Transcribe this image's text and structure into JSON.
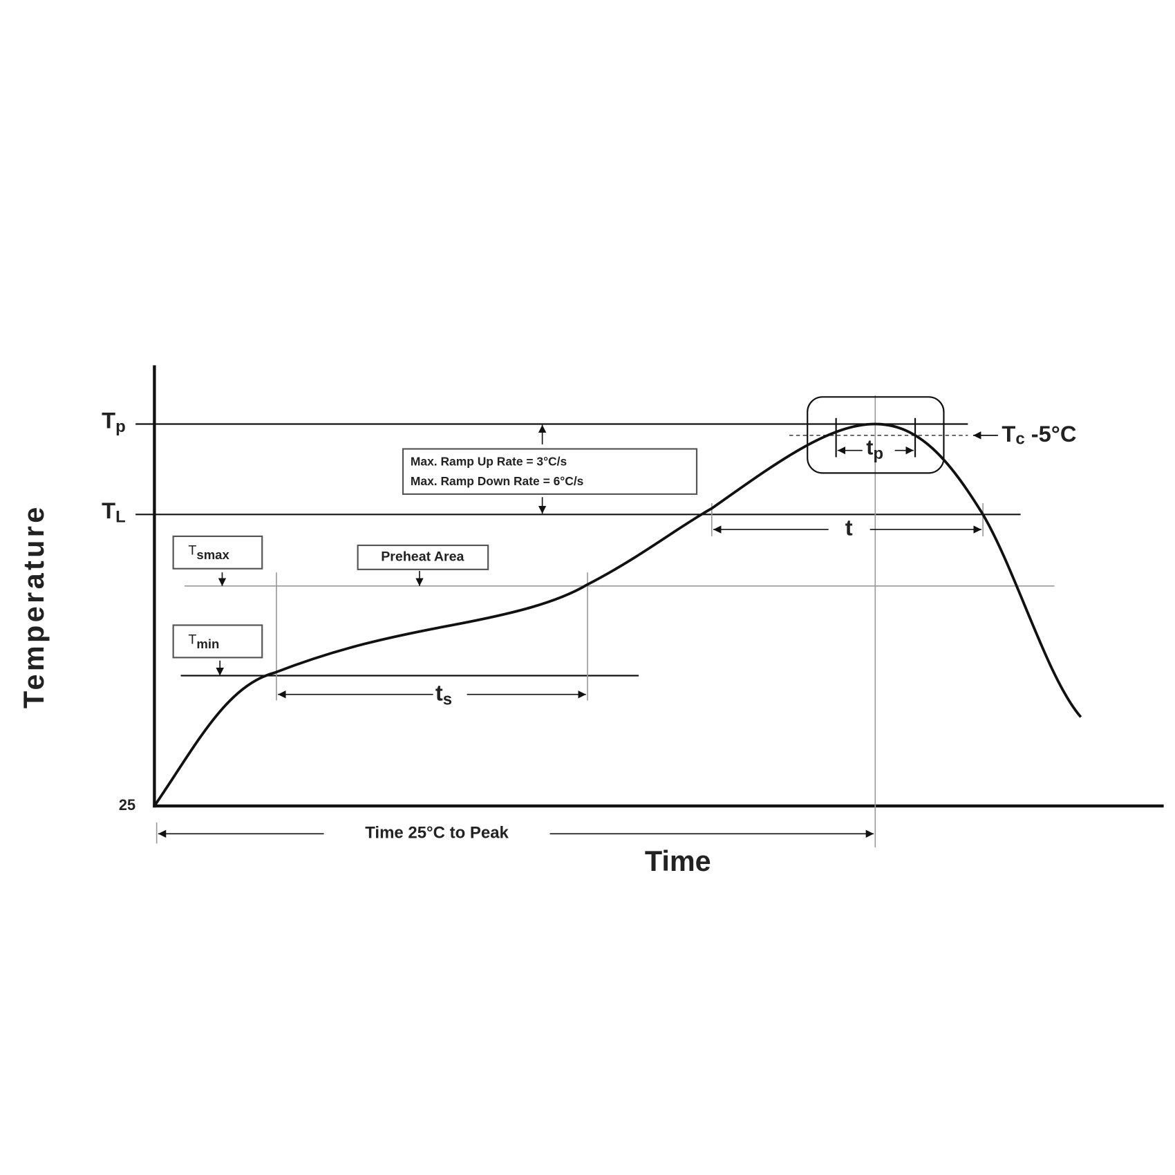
{
  "axes": {
    "y_label": "Temperature",
    "x_label": "Time",
    "origin_label": "25"
  },
  "levels": {
    "tp": {
      "main": "T",
      "sub": "p"
    },
    "tl": {
      "main": "T",
      "sub": "L"
    }
  },
  "boxes": {
    "tsmax": {
      "main": "T",
      "sub": "smax"
    },
    "tsmin": {
      "main": "T",
      "sub": "min"
    },
    "preheat": "Preheat Area",
    "ramp": [
      "Max. Ramp Up Rate = 3°C/s",
      "Max. Ramp Down Rate = 6°C/s"
    ]
  },
  "intervals": {
    "ts": {
      "main": "t",
      "sub": "s"
    },
    "tp": {
      "main": "t",
      "sub": "p"
    },
    "t": "t",
    "time_to_peak": "Time 25°C to Peak"
  },
  "tc_label": {
    "main": "T",
    "sub": "c",
    "suffix": " -5°C"
  }
}
